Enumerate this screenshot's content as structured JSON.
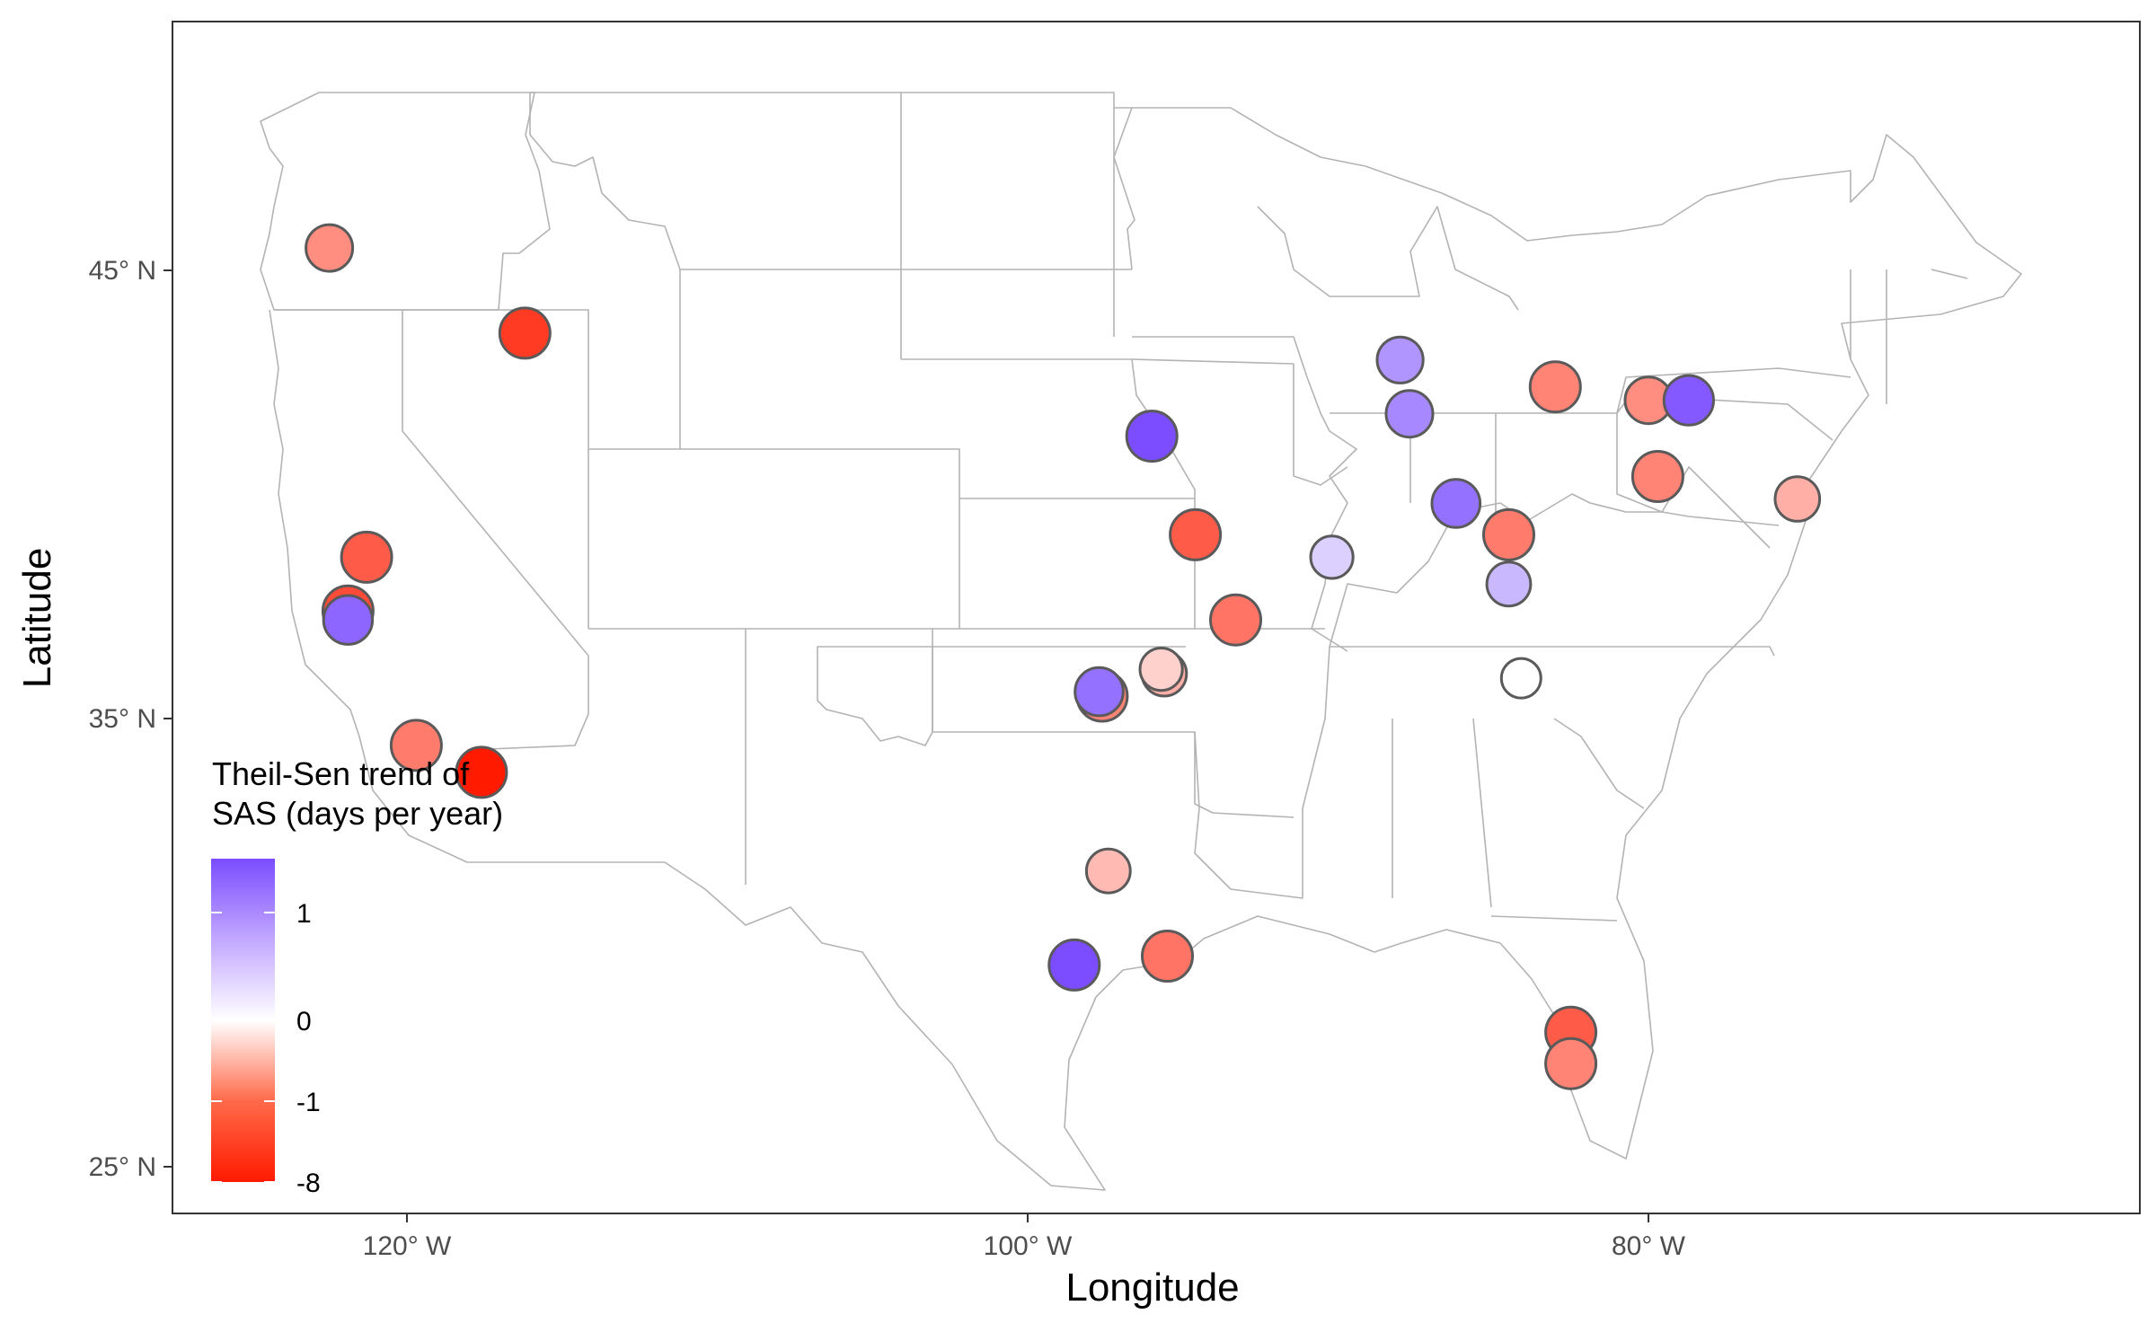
{
  "chart_data": {
    "type": "scatter",
    "xlabel": "Longitude",
    "ylabel": "Latitude",
    "xlim": [
      -127.5,
      -65.5
    ],
    "ylim": [
      24.0,
      50.5
    ],
    "xticks": [
      {
        "value": -120,
        "label": "120° W"
      },
      {
        "value": -100,
        "label": "100° W"
      },
      {
        "value": -80,
        "label": "80° W"
      }
    ],
    "yticks": [
      {
        "value": 25,
        "label": "25° N"
      },
      {
        "value": 35,
        "label": "35° N"
      },
      {
        "value": 45,
        "label": "45° N"
      }
    ],
    "grid": false,
    "basemap": "US states outline",
    "legend": {
      "title_lines": [
        "Theil-Sen trend of",
        "SAS (days per year)"
      ],
      "placement": "bottom-left",
      "breaks": [
        {
          "value": 1,
          "label": "1"
        },
        {
          "value": 0,
          "label": "0"
        },
        {
          "value": -1,
          "label": "-1"
        },
        {
          "value": -8,
          "label": "-8"
        }
      ],
      "colors": {
        "high": "#7b4dff",
        "mid": "#ffffff",
        "low": "#ff1a00"
      }
    },
    "points": [
      {
        "lon": -122.5,
        "lat": 45.5,
        "trend": -1.0
      },
      {
        "lon": -116.2,
        "lat": 43.6,
        "trend": -6.0
      },
      {
        "lon": -121.3,
        "lat": 38.6,
        "trend": -4.0
      },
      {
        "lon": -121.9,
        "lat": 37.4,
        "trend": -5.0
      },
      {
        "lon": -121.9,
        "lat": 37.2,
        "trend": 1.3
      },
      {
        "lon": -119.7,
        "lat": 34.4,
        "trend": -2.0
      },
      {
        "lon": -117.6,
        "lat": 33.8,
        "trend": -8.0
      },
      {
        "lon": -96.0,
        "lat": 41.3,
        "trend": 1.5
      },
      {
        "lon": -94.6,
        "lat": 39.1,
        "trend": -4.0
      },
      {
        "lon": -93.3,
        "lat": 37.2,
        "trend": -2.5
      },
      {
        "lon": -90.2,
        "lat": 38.6,
        "trend": 0.4
      },
      {
        "lon": -88.0,
        "lat": 43.0,
        "trend": 0.9
      },
      {
        "lon": -87.7,
        "lat": 41.8,
        "trend": 1.0
      },
      {
        "lon": -86.2,
        "lat": 39.8,
        "trend": 1.2
      },
      {
        "lon": -84.5,
        "lat": 39.1,
        "trend": -2.0
      },
      {
        "lon": -83.0,
        "lat": 42.4,
        "trend": -1.5
      },
      {
        "lon": -84.5,
        "lat": 38.0,
        "trend": 0.6
      },
      {
        "lon": -84.1,
        "lat": 35.9,
        "trend": 0.0
      },
      {
        "lon": -80.0,
        "lat": 42.1,
        "trend": -1.0
      },
      {
        "lon": -78.7,
        "lat": 42.1,
        "trend": 1.4
      },
      {
        "lon": -79.7,
        "lat": 40.4,
        "trend": -1.5
      },
      {
        "lon": -75.2,
        "lat": 39.9,
        "trend": -0.7
      },
      {
        "lon": -95.6,
        "lat": 36.0,
        "trend": -0.7
      },
      {
        "lon": -95.7,
        "lat": 36.1,
        "trend": -0.4
      },
      {
        "lon": -97.6,
        "lat": 35.5,
        "trend": -1.5
      },
      {
        "lon": -97.7,
        "lat": 35.6,
        "trend": 1.2
      },
      {
        "lon": -97.4,
        "lat": 31.6,
        "trend": -0.6
      },
      {
        "lon": -98.5,
        "lat": 29.5,
        "trend": 1.5
      },
      {
        "lon": -95.5,
        "lat": 29.7,
        "trend": -2.5
      },
      {
        "lon": -82.5,
        "lat": 28.0,
        "trend": -4.0
      },
      {
        "lon": -82.5,
        "lat": 27.3,
        "trend": -1.5
      }
    ]
  }
}
